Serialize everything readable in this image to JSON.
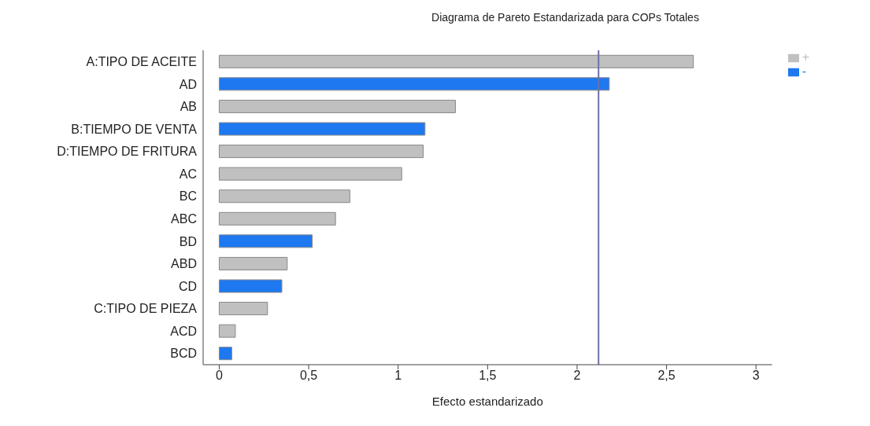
{
  "chart_data": {
    "type": "bar",
    "orientation": "horizontal",
    "stacked": true,
    "title": "Diagrama de Pareto Estandarizada para COPs Totales",
    "xlabel": "Efecto estandarizado",
    "categories": [
      "A:TIPO DE ACEITE",
      "AD",
      "AB",
      "B:TIEMPO DE VENTA",
      "D:TIEMPO DE FRITURA",
      "AC",
      "BC",
      "ABC",
      "BD",
      "ABD",
      "CD",
      "C:TIPO DE PIEZA",
      "ACD",
      "BCD"
    ],
    "series": [
      {
        "name": "+",
        "color": "#c0c0c0",
        "values": [
          2.65,
          null,
          1.32,
          null,
          1.14,
          1.02,
          0.73,
          0.65,
          null,
          0.38,
          null,
          0.27,
          0.09,
          null
        ]
      },
      {
        "name": "-",
        "color": "#1e78f0",
        "values": [
          null,
          2.18,
          null,
          1.15,
          null,
          null,
          null,
          null,
          0.52,
          null,
          0.35,
          null,
          null,
          0.07
        ]
      }
    ],
    "xlim": [
      -0.09,
      3.09
    ],
    "xticks": [
      0,
      {
        "value": 0.5,
        "label": "0,5"
      },
      1,
      {
        "value": 1.5,
        "label": "1,5"
      },
      2,
      {
        "value": 2.5,
        "label": "2,5"
      },
      3
    ],
    "ref_lines": [
      {
        "axis": "x",
        "value": 2.12,
        "color": "#6f6fa8"
      }
    ],
    "legend": "right",
    "grid": false
  }
}
